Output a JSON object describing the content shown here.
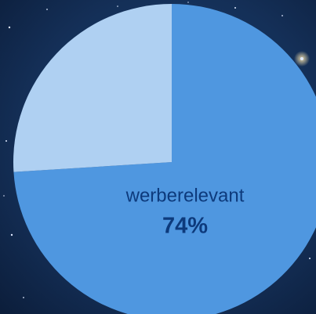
{
  "chart_data": {
    "type": "pie",
    "categories": [
      "werberelevant",
      null
    ],
    "values": [
      74,
      26
    ],
    "value_labels": [
      "74%",
      null
    ],
    "colors": [
      "#4f97e0",
      "#afd0f2"
    ],
    "label_color": "#0d3a7c"
  }
}
